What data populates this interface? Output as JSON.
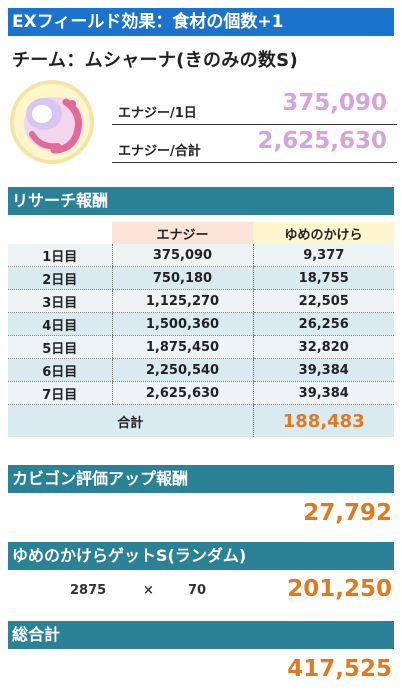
{
  "header": {
    "title": "EXフィールド効果：食材の個数+1"
  },
  "team": {
    "name": "チーム：ムシャーナ(きのみの数S)"
  },
  "energy": {
    "per_day_label": "エナジー/1日",
    "per_day_value": "375,090",
    "total_label": "エナジー/合計",
    "total_value": "2,625,630"
  },
  "research": {
    "title": "リサーチ報酬",
    "columns": {
      "energy": "エナジー",
      "candy": "ゆめのかけら"
    },
    "rows": [
      {
        "day": "1日目",
        "energy": "375,090",
        "candy": "9,377"
      },
      {
        "day": "2日目",
        "energy": "750,180",
        "candy": "18,755"
      },
      {
        "day": "3日目",
        "energy": "1,125,270",
        "candy": "22,505"
      },
      {
        "day": "4日目",
        "energy": "1,500,360",
        "candy": "26,256"
      },
      {
        "day": "5日目",
        "energy": "1,875,450",
        "candy": "32,820"
      },
      {
        "day": "6日目",
        "energy": "2,250,540",
        "candy": "39,384"
      },
      {
        "day": "7日目",
        "energy": "2,625,630",
        "candy": "39,384"
      }
    ],
    "total_label": "合計",
    "total_value": "188,483"
  },
  "snorlax": {
    "title": "カビゴン評価アップ報酬",
    "value": "27,792"
  },
  "random_dream": {
    "title": "ゆめのかけらゲットS(ランダム)",
    "base": "2875",
    "times": "×",
    "multiplier": "70",
    "value": "201,250"
  },
  "grand_total": {
    "title": "総合計",
    "value": "417,525"
  },
  "colors": {
    "title_bar": "#1a73cc",
    "section_bar": "#2b8196",
    "energy_value": "#d6a4d8",
    "highlight_value": "#e07a1f"
  }
}
